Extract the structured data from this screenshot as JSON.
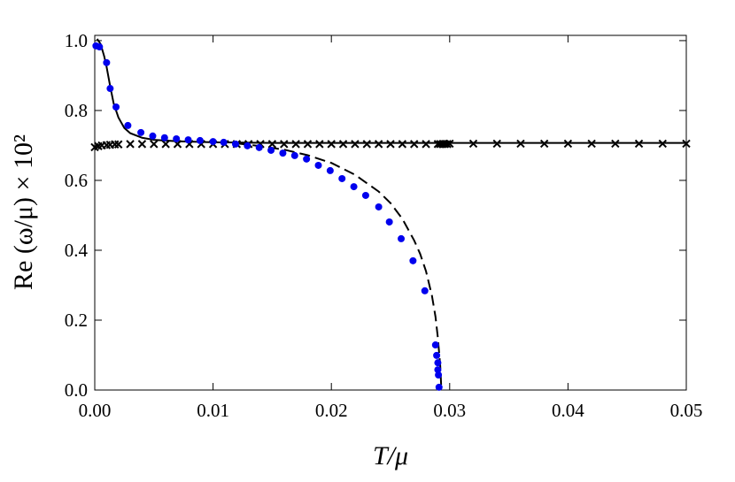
{
  "chart_data": {
    "type": "line",
    "xlabel": "T/μ",
    "ylabel": "Re (ω/μ) × 10²",
    "xlim": [
      0,
      0.05
    ],
    "ylim": [
      0,
      1.015
    ],
    "xticks": [
      {
        "value": 0,
        "label": "0.00"
      },
      0.01,
      0.02,
      0.03,
      0.04,
      0.05
    ],
    "yticks": [
      {
        "value": 0,
        "label": "0.0"
      },
      0.2,
      0.4,
      0.6,
      0.8,
      {
        "value": 1,
        "label": "1.0"
      }
    ],
    "series": [
      {
        "color": "#000000",
        "line": "solid",
        "marker": null,
        "x": [
          0.0002,
          0.0005,
          0.0008,
          0.001,
          0.0013,
          0.0016,
          0.002,
          0.0025,
          0.003,
          0.004,
          0.005,
          0.007,
          0.01,
          0.015,
          0.02,
          0.03,
          0.05
        ],
        "values": [
          1.005,
          0.99,
          0.955,
          0.925,
          0.87,
          0.82,
          0.78,
          0.75,
          0.735,
          0.722,
          0.716,
          0.712,
          0.709,
          0.707,
          0.707,
          0.707,
          0.707
        ]
      },
      {
        "color": "#000000",
        "line": "dashed",
        "marker": null,
        "x": [
          0.012,
          0.014,
          0.016,
          0.018,
          0.02,
          0.022,
          0.024,
          0.025,
          0.026,
          0.027,
          0.0275,
          0.028,
          0.0285,
          0.0288,
          0.029,
          0.0292,
          0.0293
        ],
        "values": [
          0.706,
          0.698,
          0.688,
          0.672,
          0.65,
          0.616,
          0.568,
          0.535,
          0.49,
          0.428,
          0.39,
          0.34,
          0.27,
          0.21,
          0.15,
          0.07,
          0
        ]
      },
      {
        "color": "#000000",
        "line": null,
        "marker": "x",
        "x": [
          0,
          0.0003,
          0.0006,
          0.001,
          0.0013,
          0.0017,
          0.002,
          0.003,
          0.004,
          0.005,
          0.006,
          0.007,
          0.008,
          0.009,
          0.01,
          0.011,
          0.012,
          0.013,
          0.014,
          0.015,
          0.016,
          0.017,
          0.018,
          0.019,
          0.02,
          0.021,
          0.022,
          0.023,
          0.024,
          0.025,
          0.026,
          0.027,
          0.028,
          0.029,
          0.0292,
          0.0294,
          0.0296,
          0.0298,
          0.03,
          0.032,
          0.034,
          0.036,
          0.038,
          0.04,
          0.042,
          0.044,
          0.046,
          0.048,
          0.05
        ],
        "values": [
          0.695,
          0.698,
          0.7,
          0.701,
          0.702,
          0.703,
          0.703,
          0.704,
          0.704,
          0.704,
          0.704,
          0.704,
          0.704,
          0.704,
          0.704,
          0.704,
          0.704,
          0.704,
          0.704,
          0.704,
          0.704,
          0.704,
          0.704,
          0.704,
          0.704,
          0.704,
          0.704,
          0.704,
          0.704,
          0.704,
          0.704,
          0.704,
          0.704,
          0.704,
          0.704,
          0.704,
          0.704,
          0.704,
          0.705,
          0.705,
          0.705,
          0.705,
          0.705,
          0.705,
          0.705,
          0.705,
          0.705,
          0.705,
          0.705
        ]
      },
      {
        "color": "#0000ee",
        "line": null,
        "marker": "circle",
        "x": [
          0.0001,
          0.0004,
          0.001,
          0.0013,
          0.0018,
          0.0028,
          0.0039,
          0.0049,
          0.0059,
          0.0069,
          0.0079,
          0.0089,
          0.01,
          0.0109,
          0.0119,
          0.0129,
          0.0139,
          0.0149,
          0.0159,
          0.0169,
          0.0179,
          0.0189,
          0.0199,
          0.0209,
          0.0219,
          0.0229,
          0.024,
          0.0249,
          0.0259,
          0.0269,
          0.0279,
          0.0288,
          0.0289,
          0.029,
          0.029,
          0.02905,
          0.0291
        ],
        "values": [
          0.985,
          0.982,
          0.937,
          0.863,
          0.81,
          0.757,
          0.737,
          0.727,
          0.722,
          0.719,
          0.716,
          0.714,
          0.711,
          0.709,
          0.704,
          0.699,
          0.694,
          0.686,
          0.678,
          0.671,
          0.661,
          0.643,
          0.628,
          0.605,
          0.582,
          0.557,
          0.524,
          0.481,
          0.433,
          0.37,
          0.284,
          0.129,
          0.099,
          0.078,
          0.058,
          0.043,
          0.008
        ]
      }
    ]
  }
}
